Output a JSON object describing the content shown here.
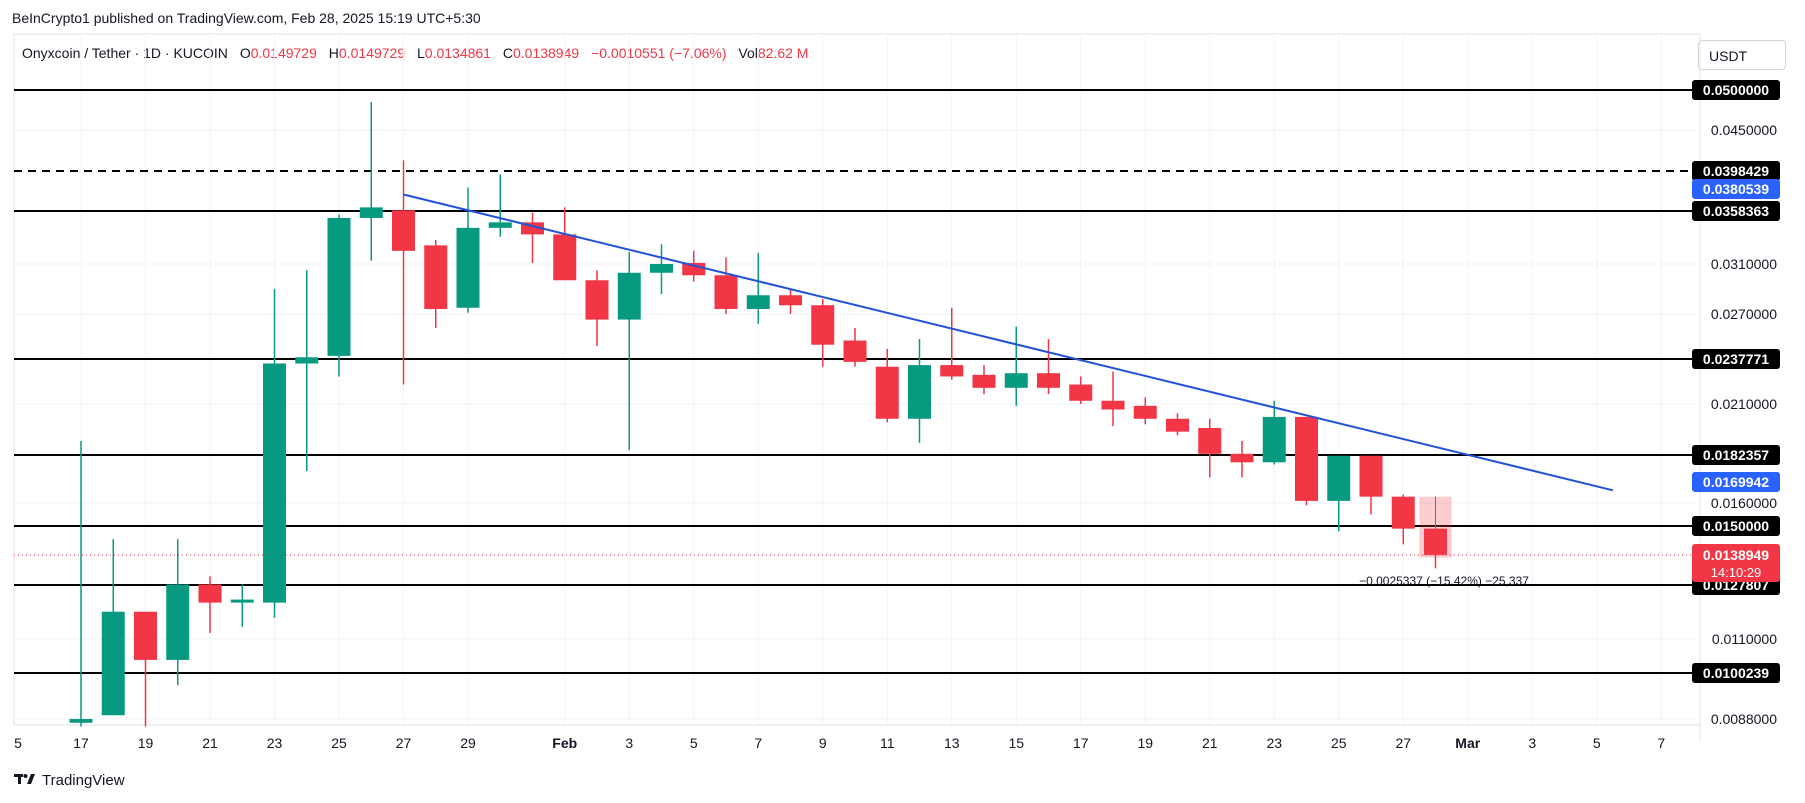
{
  "publisher": "BeInCrypto1 published on TradingView.com, Feb 28, 2025 15:19 UTC+5:30",
  "legend": {
    "symbol": "Onyxcoin / Tether · 1D · KUCOIN",
    "open_label": "O",
    "open": "0.0149729",
    "high_label": "H",
    "high": "0.0149729",
    "low_label": "L",
    "low": "0.0134861",
    "close_label": "C",
    "close": "0.0138949",
    "change": "−0.0010551 (−7.06%)",
    "vol_label": "Vol",
    "vol": "82.62 M"
  },
  "currency_button": "USDT",
  "brand": "TradingView",
  "colors": {
    "up": "#089981",
    "down": "#f23645",
    "trendline": "#2253d6",
    "level": "#000000",
    "price_badge": "#f23645",
    "blue_badge": "#2962ff"
  },
  "chart_data": {
    "type": "candlestick",
    "x_ticks": [
      {
        "label": "5",
        "x": -12
      },
      {
        "label": "17",
        "x": 0
      },
      {
        "label": "19",
        "x": 2
      },
      {
        "label": "21",
        "x": 4
      },
      {
        "label": "23",
        "x": 6
      },
      {
        "label": "25",
        "x": 8
      },
      {
        "label": "27",
        "x": 10
      },
      {
        "label": "29",
        "x": 12
      },
      {
        "label": "Feb",
        "x": 15
      },
      {
        "label": "3",
        "x": 17
      },
      {
        "label": "5",
        "x": 19
      },
      {
        "label": "7",
        "x": 21
      },
      {
        "label": "9",
        "x": 23
      },
      {
        "label": "11",
        "x": 25
      },
      {
        "label": "13",
        "x": 27
      },
      {
        "label": "15",
        "x": 29
      },
      {
        "label": "17",
        "x": 31
      },
      {
        "label": "19",
        "x": 33
      },
      {
        "label": "21",
        "x": 35
      },
      {
        "label": "23",
        "x": 37
      },
      {
        "label": "25",
        "x": 39
      },
      {
        "label": "27",
        "x": 41
      },
      {
        "label": "Mar",
        "x": 43
      },
      {
        "label": "3",
        "x": 45
      },
      {
        "label": "5",
        "x": 47
      },
      {
        "label": "7",
        "x": 49
      }
    ],
    "y_ticks": [
      "0.0450000",
      "0.0310000",
      "0.0270000",
      "0.0210000",
      "0.0160000",
      "0.0110000",
      "0.0088000"
    ],
    "y_tick_values": [
      0.045,
      0.031,
      0.027,
      0.021,
      0.016,
      0.011,
      0.0088
    ],
    "levels": [
      {
        "label": "0.0500000",
        "value": 0.05,
        "style": "solid"
      },
      {
        "label": "0.0398429",
        "value": 0.0398429,
        "style": "dashed"
      },
      {
        "label": "0.0358363",
        "value": 0.0358363,
        "style": "solid"
      },
      {
        "label": "0.0237771",
        "value": 0.0237771,
        "style": "solid"
      },
      {
        "label": "0.0182357",
        "value": 0.0182357,
        "style": "solid"
      },
      {
        "label": "0.0150000",
        "value": 0.015,
        "style": "solid"
      },
      {
        "label": "0.0127807",
        "value": 0.0127807,
        "style": "solid"
      },
      {
        "label": "0.0100239",
        "value": 0.0100239,
        "style": "solid"
      }
    ],
    "blue_badges": [
      {
        "label": "0.0380539",
        "value": 0.0380539
      },
      {
        "label": "0.0169942",
        "value": 0.0169942
      }
    ],
    "current_price": {
      "label": "0.0138949",
      "value": 0.0138949,
      "countdown": "14:10:29"
    },
    "measure_label": "−0.0025337 (−15.42%) −25,337",
    "trendline": {
      "x1": 10,
      "y1": 0.0375,
      "x2": 47.5,
      "y2": 0.0166
    },
    "candles": [
      {
        "x": 0,
        "o": 0.0087,
        "h": 0.019,
        "l": 0.0086,
        "c": 0.0088
      },
      {
        "x": 1,
        "o": 0.0089,
        "h": 0.0145,
        "l": 0.0089,
        "c": 0.0119
      },
      {
        "x": 2,
        "o": 0.0119,
        "h": 0.0119,
        "l": 0.0086,
        "c": 0.0104
      },
      {
        "x": 3,
        "o": 0.0104,
        "h": 0.0145,
        "l": 0.0097,
        "c": 0.0128
      },
      {
        "x": 4,
        "o": 0.0128,
        "h": 0.0131,
        "l": 0.0112,
        "c": 0.0122
      },
      {
        "x": 5,
        "o": 0.0122,
        "h": 0.0128,
        "l": 0.0114,
        "c": 0.0123
      },
      {
        "x": 6,
        "o": 0.0122,
        "h": 0.029,
        "l": 0.0117,
        "c": 0.0235
      },
      {
        "x": 7,
        "o": 0.0235,
        "h": 0.0305,
        "l": 0.0175,
        "c": 0.0239
      },
      {
        "x": 8,
        "o": 0.024,
        "h": 0.0355,
        "l": 0.0227,
        "c": 0.0352
      },
      {
        "x": 9,
        "o": 0.0352,
        "h": 0.0485,
        "l": 0.0313,
        "c": 0.0362
      },
      {
        "x": 10,
        "o": 0.0359,
        "h": 0.0412,
        "l": 0.0222,
        "c": 0.0322
      },
      {
        "x": 11,
        "o": 0.0327,
        "h": 0.0332,
        "l": 0.026,
        "c": 0.0274
      },
      {
        "x": 12,
        "o": 0.0275,
        "h": 0.0382,
        "l": 0.0271,
        "c": 0.0343
      },
      {
        "x": 13,
        "o": 0.0343,
        "h": 0.0395,
        "l": 0.0335,
        "c": 0.0348
      },
      {
        "x": 14,
        "o": 0.0348,
        "h": 0.0357,
        "l": 0.0311,
        "c": 0.0337
      },
      {
        "x": 15,
        "o": 0.0337,
        "h": 0.0362,
        "l": 0.03,
        "c": 0.0297
      },
      {
        "x": 16,
        "o": 0.0297,
        "h": 0.0305,
        "l": 0.0247,
        "c": 0.0266
      },
      {
        "x": 17,
        "o": 0.0266,
        "h": 0.0321,
        "l": 0.0185,
        "c": 0.0303
      },
      {
        "x": 18,
        "o": 0.0303,
        "h": 0.0328,
        "l": 0.0286,
        "c": 0.031
      },
      {
        "x": 19,
        "o": 0.0311,
        "h": 0.0322,
        "l": 0.0296,
        "c": 0.0301
      },
      {
        "x": 20,
        "o": 0.0301,
        "h": 0.0316,
        "l": 0.027,
        "c": 0.0274
      },
      {
        "x": 21,
        "o": 0.0274,
        "h": 0.032,
        "l": 0.0263,
        "c": 0.0285
      },
      {
        "x": 22,
        "o": 0.0285,
        "h": 0.029,
        "l": 0.027,
        "c": 0.0277
      },
      {
        "x": 23,
        "o": 0.0277,
        "h": 0.0282,
        "l": 0.0233,
        "c": 0.0248
      },
      {
        "x": 24,
        "o": 0.0251,
        "h": 0.026,
        "l": 0.0233,
        "c": 0.0236
      },
      {
        "x": 25,
        "o": 0.0233,
        "h": 0.0245,
        "l": 0.02,
        "c": 0.0202
      },
      {
        "x": 26,
        "o": 0.0202,
        "h": 0.0252,
        "l": 0.0189,
        "c": 0.0234
      },
      {
        "x": 27,
        "o": 0.0234,
        "h": 0.0275,
        "l": 0.0225,
        "c": 0.0227
      },
      {
        "x": 28,
        "o": 0.0228,
        "h": 0.0234,
        "l": 0.0216,
        "c": 0.022
      },
      {
        "x": 29,
        "o": 0.022,
        "h": 0.0261,
        "l": 0.0209,
        "c": 0.0229
      },
      {
        "x": 30,
        "o": 0.0229,
        "h": 0.0252,
        "l": 0.0216,
        "c": 0.022
      },
      {
        "x": 31,
        "o": 0.0222,
        "h": 0.0227,
        "l": 0.021,
        "c": 0.0212
      },
      {
        "x": 32,
        "o": 0.0212,
        "h": 0.023,
        "l": 0.0198,
        "c": 0.0207
      },
      {
        "x": 33,
        "o": 0.0209,
        "h": 0.0214,
        "l": 0.0199,
        "c": 0.0202
      },
      {
        "x": 34,
        "o": 0.0202,
        "h": 0.0205,
        "l": 0.0193,
        "c": 0.0195
      },
      {
        "x": 35,
        "o": 0.0197,
        "h": 0.0202,
        "l": 0.0172,
        "c": 0.0183
      },
      {
        "x": 36,
        "o": 0.0183,
        "h": 0.019,
        "l": 0.0172,
        "c": 0.0179
      },
      {
        "x": 37,
        "o": 0.0179,
        "h": 0.0212,
        "l": 0.0178,
        "c": 0.0203
      },
      {
        "x": 38,
        "o": 0.0203,
        "h": 0.0203,
        "l": 0.0159,
        "c": 0.0161
      },
      {
        "x": 39,
        "o": 0.0161,
        "h": 0.0182,
        "l": 0.0148,
        "c": 0.0182
      },
      {
        "x": 40,
        "o": 0.0182,
        "h": 0.0182,
        "l": 0.0155,
        "c": 0.0163
      },
      {
        "x": 41,
        "o": 0.0163,
        "h": 0.0164,
        "l": 0.0143,
        "c": 0.0149
      },
      {
        "x": 42,
        "o": 0.0149,
        "h": 0.0149,
        "l": 0.0134,
        "c": 0.0139
      }
    ],
    "measure_box": {
      "x1": 41.5,
      "x2": 42.5,
      "top": 0.0163,
      "bottom": 0.0138
    }
  }
}
